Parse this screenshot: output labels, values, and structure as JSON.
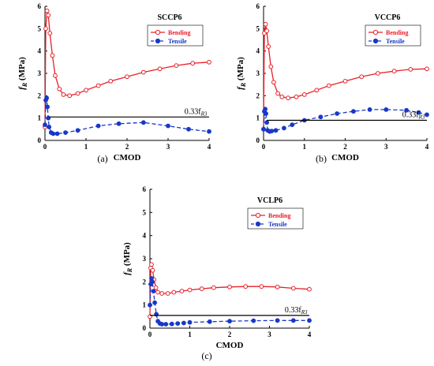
{
  "chart_data": [
    {
      "panel": "a",
      "caption": "(a)",
      "title": "SCCP6",
      "type": "line",
      "xlabel": "CMOD",
      "ylabel": "f",
      "ylabel_sub": "R",
      "ylabel_unit": " (MPa)",
      "xlim": [
        0,
        4
      ],
      "ylim": [
        0,
        6
      ],
      "xticks": [
        0,
        1,
        2,
        3,
        4
      ],
      "yticks": [
        0,
        1,
        2,
        3,
        4,
        5,
        6
      ],
      "legend_position": "top-right",
      "annotation": {
        "text": "0.33f",
        "sub": "R3",
        "x": 3.95,
        "y": 1.05
      },
      "series": [
        {
          "name": "Bending",
          "color": "#e8202a",
          "style": "solid",
          "marker": "open-circle",
          "x": [
            0,
            0.02,
            0.05,
            0.08,
            0.12,
            0.18,
            0.25,
            0.35,
            0.45,
            0.6,
            0.8,
            1.0,
            1.3,
            1.6,
            2.0,
            2.4,
            2.8,
            3.2,
            3.6,
            4.0
          ],
          "y": [
            0.6,
            5.0,
            5.8,
            5.6,
            4.8,
            3.8,
            2.9,
            2.3,
            2.05,
            2.0,
            2.1,
            2.25,
            2.45,
            2.65,
            2.85,
            3.05,
            3.2,
            3.35,
            3.45,
            3.5
          ]
        },
        {
          "name": "Tensile",
          "color": "#1838c8",
          "style": "dashed",
          "marker": "filled-circle",
          "x": [
            0,
            0.02,
            0.04,
            0.06,
            0.08,
            0.1,
            0.15,
            0.2,
            0.3,
            0.5,
            0.8,
            1.3,
            1.8,
            2.4,
            3.0,
            3.5,
            4.0
          ],
          "y": [
            0.7,
            1.8,
            1.9,
            1.5,
            1.0,
            0.6,
            0.35,
            0.3,
            0.3,
            0.35,
            0.45,
            0.65,
            0.75,
            0.8,
            0.65,
            0.5,
            0.4
          ]
        },
        {
          "name": "",
          "color": "#000000",
          "style": "solid",
          "marker": "none",
          "x": [
            0.1,
            4.0
          ],
          "y": [
            1.05,
            1.05
          ]
        }
      ]
    },
    {
      "panel": "b",
      "caption": "(b)",
      "title": "VCCP6",
      "type": "line",
      "xlabel": "CMOD",
      "ylabel": "f",
      "ylabel_sub": "R",
      "ylabel_unit": " (MPa)",
      "xlim": [
        0,
        4
      ],
      "ylim": [
        0,
        6
      ],
      "xticks": [
        0,
        1,
        2,
        3,
        4
      ],
      "yticks": [
        0,
        1,
        2,
        3,
        4,
        5,
        6
      ],
      "legend_position": "top-right",
      "annotation": {
        "text": "0.33f",
        "sub": "R3",
        "x": 3.95,
        "y": 0.9
      },
      "series": [
        {
          "name": "Bending",
          "color": "#e8202a",
          "style": "solid",
          "marker": "open-circle",
          "x": [
            0,
            0.02,
            0.05,
            0.08,
            0.12,
            0.18,
            0.25,
            0.35,
            0.45,
            0.6,
            0.8,
            1.0,
            1.3,
            1.6,
            2.0,
            2.4,
            2.8,
            3.2,
            3.6,
            4.0
          ],
          "y": [
            0.5,
            4.8,
            5.2,
            4.9,
            4.2,
            3.3,
            2.6,
            2.1,
            1.95,
            1.9,
            1.95,
            2.05,
            2.25,
            2.45,
            2.65,
            2.85,
            3.0,
            3.1,
            3.18,
            3.2
          ]
        },
        {
          "name": "Tensile",
          "color": "#1838c8",
          "style": "dashed",
          "marker": "filled-circle",
          "x": [
            0,
            0.02,
            0.04,
            0.06,
            0.08,
            0.1,
            0.15,
            0.2,
            0.3,
            0.5,
            0.7,
            1.0,
            1.4,
            1.8,
            2.2,
            2.6,
            3.0,
            3.5,
            3.8,
            4.0
          ],
          "y": [
            0.5,
            1.3,
            1.4,
            1.2,
            0.8,
            0.45,
            0.4,
            0.42,
            0.45,
            0.55,
            0.7,
            0.9,
            1.05,
            1.2,
            1.3,
            1.38,
            1.38,
            1.35,
            1.25,
            1.15
          ]
        },
        {
          "name": "",
          "color": "#000000",
          "style": "solid",
          "marker": "none",
          "x": [
            0.08,
            4.0
          ],
          "y": [
            0.9,
            0.9
          ]
        }
      ]
    },
    {
      "panel": "c",
      "caption": "(c)",
      "title": "VCLP6",
      "type": "line",
      "xlabel": "CMOD",
      "ylabel": "f",
      "ylabel_sub": "R",
      "ylabel_unit": " (MPa)",
      "xlim": [
        0,
        4
      ],
      "ylim": [
        0,
        6
      ],
      "xticks": [
        0,
        1,
        2,
        3,
        4
      ],
      "yticks": [
        0,
        1,
        2,
        3,
        4,
        5,
        6
      ],
      "legend_position": "top-right",
      "annotation": {
        "text": "0.33f",
        "sub": "R3",
        "x": 3.95,
        "y": 0.55
      },
      "series": [
        {
          "name": "Bending",
          "color": "#e8202a",
          "style": "solid",
          "marker": "open-circle",
          "x": [
            0,
            0.02,
            0.04,
            0.07,
            0.1,
            0.15,
            0.2,
            0.3,
            0.45,
            0.6,
            0.8,
            1.0,
            1.3,
            1.6,
            2.0,
            2.4,
            2.8,
            3.2,
            3.6,
            4.0
          ],
          "y": [
            0.5,
            2.6,
            2.75,
            2.5,
            2.1,
            1.75,
            1.55,
            1.5,
            1.5,
            1.55,
            1.6,
            1.65,
            1.7,
            1.75,
            1.78,
            1.8,
            1.8,
            1.78,
            1.72,
            1.68
          ]
        },
        {
          "name": "Tensile",
          "color": "#1838c8",
          "style": "dashed",
          "marker": "filled-circle",
          "x": [
            0,
            0.02,
            0.04,
            0.06,
            0.09,
            0.12,
            0.16,
            0.2,
            0.25,
            0.3,
            0.4,
            0.55,
            0.7,
            0.85,
            1.0,
            1.5,
            2.0,
            2.6,
            3.2,
            3.6,
            4.0
          ],
          "y": [
            1.0,
            1.9,
            2.15,
            2.0,
            1.6,
            1.1,
            0.6,
            0.3,
            0.2,
            0.17,
            0.17,
            0.18,
            0.2,
            0.22,
            0.25,
            0.28,
            0.3,
            0.32,
            0.33,
            0.33,
            0.33
          ]
        },
        {
          "name": "",
          "color": "#000000",
          "style": "solid",
          "marker": "none",
          "x": [
            0.0,
            4.0
          ],
          "y": [
            0.55,
            0.55
          ]
        }
      ]
    }
  ]
}
